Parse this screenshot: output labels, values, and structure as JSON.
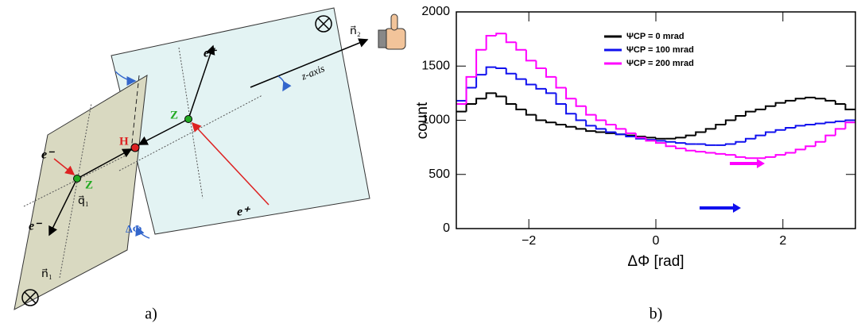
{
  "diagram": {
    "labels": [
      "e⁺",
      "e⁺",
      "e⁻",
      "e⁻",
      "Z",
      "Z",
      "H",
      "q⃗₁",
      "ΔΦ",
      "n⃗₁",
      "n⃗₂",
      "z-axis"
    ]
  },
  "captions": [
    "a)",
    "b)"
  ],
  "chart_data": {
    "type": "histogram",
    "xlabel": "ΔΦ [rad]",
    "ylabel": "count",
    "bins": [
      -3.1416,
      -2.9845,
      -2.8274,
      -2.6704,
      -2.5133,
      -2.3562,
      -2.1991,
      -2.042,
      -1.885,
      -1.7279,
      -1.5708,
      -1.4137,
      -1.2566,
      -1.0996,
      -0.9425,
      -0.7854,
      -0.6283,
      -0.4712,
      -0.3142,
      -0.1571,
      0,
      0.1571,
      0.3142,
      0.4712,
      0.6283,
      0.7854,
      0.9425,
      1.0996,
      1.2566,
      1.4137,
      1.5708,
      1.7279,
      1.885,
      2.042,
      2.1991,
      2.3562,
      2.5133,
      2.6704,
      2.8274,
      2.9845,
      3.1416
    ],
    "series": [
      {
        "name": "ΨCP = 0 mrad",
        "color": "#000000",
        "values": [
          1080,
          1150,
          1200,
          1250,
          1220,
          1150,
          1100,
          1050,
          1000,
          980,
          960,
          940,
          920,
          900,
          890,
          880,
          870,
          860,
          850,
          840,
          830,
          830,
          840,
          860,
          890,
          920,
          960,
          1000,
          1040,
          1080,
          1100,
          1130,
          1160,
          1180,
          1200,
          1210,
          1200,
          1180,
          1150,
          1100
        ]
      },
      {
        "name": "ΨCP = 100 mrad",
        "color": "#1010ee",
        "values": [
          1180,
          1300,
          1420,
          1490,
          1480,
          1430,
          1380,
          1330,
          1290,
          1250,
          1150,
          1060,
          1000,
          950,
          920,
          890,
          870,
          850,
          830,
          820,
          810,
          800,
          790,
          780,
          780,
          770,
          770,
          780,
          800,
          830,
          860,
          890,
          910,
          930,
          950,
          960,
          970,
          980,
          990,
          1000
        ]
      },
      {
        "name": "ΨCP = 200 mrad",
        "color": "#ff00ff",
        "values": [
          1150,
          1400,
          1650,
          1780,
          1800,
          1720,
          1650,
          1550,
          1480,
          1400,
          1300,
          1200,
          1130,
          1050,
          1000,
          960,
          920,
          880,
          840,
          810,
          790,
          760,
          740,
          720,
          710,
          700,
          690,
          680,
          660,
          650,
          650,
          660,
          680,
          700,
          730,
          760,
          800,
          860,
          920,
          980
        ]
      }
    ],
    "xlim": [
      -3.1416,
      3.1416
    ],
    "xticks": [
      {
        "value": -2,
        "label": "−2"
      },
      0,
      2
    ],
    "ylim": [
      0,
      2000
    ],
    "yticks": [
      0,
      500,
      1000,
      1500,
      2000
    ]
  }
}
